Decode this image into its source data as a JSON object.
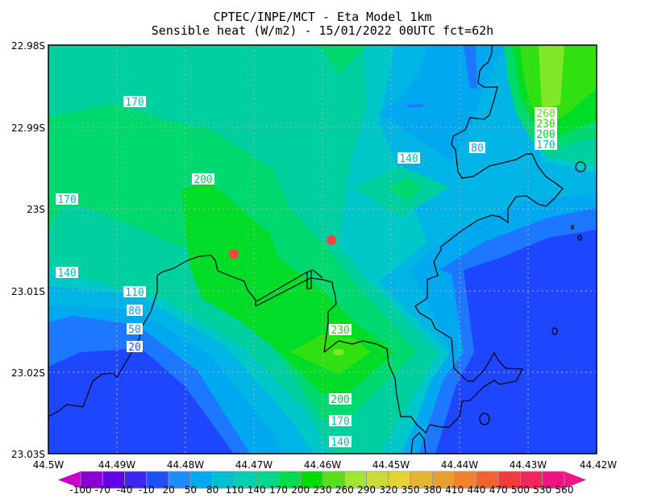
{
  "header": {
    "title_line1": "CPTEC/INPE/MCT -  Eta Model 1km",
    "title_line2": "Sensible heat (W/m2) - 15/01/2022 00UTC fct=62h"
  },
  "map": {
    "lat_ticks": [
      "22.98S",
      "22.99S",
      "23S",
      "23.01S",
      "23.02S",
      "23.03S"
    ],
    "lon_ticks": [
      "44.5W",
      "44.49W",
      "44.48W",
      "44.47W",
      "44.46W",
      "44.45W",
      "44.44W",
      "44.43W",
      "44.42W"
    ],
    "lon_range": [
      -44.5,
      -44.42
    ],
    "lat_range": [
      -23.03,
      -22.98
    ],
    "grid": true,
    "coastline_color": "#000000",
    "marker_color": "#ff4040",
    "markers": [
      "red-dot",
      "red-dot"
    ],
    "contour_labels": [
      "170",
      "200",
      "170",
      "140",
      "110",
      "80",
      "50",
      "20",
      "140",
      "80",
      "260",
      "230",
      "200",
      "170",
      "230",
      "200",
      "170",
      "140"
    ]
  },
  "colorbar": {
    "levels": [
      "-100",
      "-70",
      "-40",
      "-10",
      "20",
      "50",
      "80",
      "110",
      "140",
      "170",
      "200",
      "230",
      "260",
      "290",
      "320",
      "350",
      "380",
      "410",
      "440",
      "470",
      "500",
      "530",
      "560"
    ],
    "colors": [
      "#8c00d4",
      "#6400e6",
      "#3c28f0",
      "#1e50ff",
      "#1e8cff",
      "#00aaf0",
      "#00c0d2",
      "#00d0b4",
      "#00d88c",
      "#00dc50",
      "#00dc00",
      "#5adc1e",
      "#a0e632",
      "#c8dc3c",
      "#e6d232",
      "#e6b432",
      "#e6a032",
      "#f08232",
      "#f06432",
      "#f03c3c",
      "#f0285a",
      "#f01482"
    ],
    "under_color": "#c800c8",
    "over_color": "#f0148c"
  }
}
